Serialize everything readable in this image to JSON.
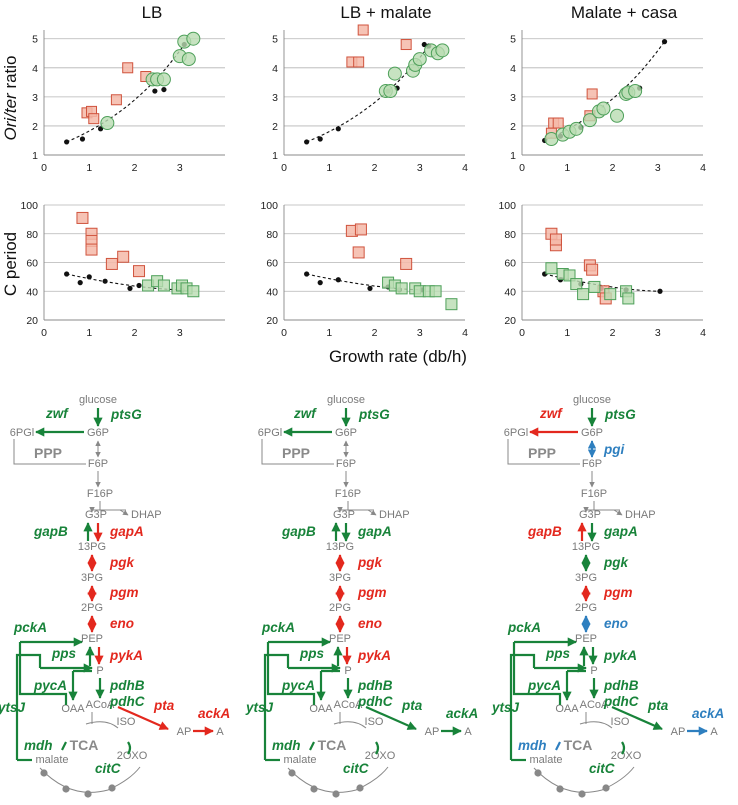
{
  "figure": {
    "panel_titles": [
      "LB",
      "LB + malate",
      "Malate + casa"
    ],
    "row_labels": {
      "ori_ter": {
        "prefix": "Ori/ter",
        "suffix": " ratio"
      },
      "c_period": "C period"
    },
    "x_axis_label": "Growth rate (db/h)",
    "x_ticks": [
      "0",
      "1",
      "2",
      "3",
      "4"
    ],
    "y_ticks_ori": [
      "1",
      "2",
      "3",
      "4",
      "5"
    ],
    "y_ticks_c": [
      "20",
      "40",
      "60",
      "80",
      "100"
    ]
  },
  "colors": {
    "red": "#e3281e",
    "green": "#18833a",
    "blue": "#2e7fbf",
    "gray": "#888888",
    "red_marker_fill": "#f4b9a8",
    "red_marker_stroke": "#d0533d",
    "green_marker_fill": "#b9dcb1",
    "green_marker_stroke": "#4ea05a"
  },
  "chart_data": [
    {
      "type": "scatter",
      "panel": "LB",
      "metric": "Ori/ter ratio",
      "xlim": [
        0,
        3.5
      ],
      "ylim": [
        1,
        5.3
      ],
      "fit": "exponential dashed trend",
      "series": [
        {
          "name": "reference (black)",
          "points": [
            [
              0.5,
              1.45
            ],
            [
              0.85,
              1.55
            ],
            [
              1.25,
              1.9
            ],
            [
              2.45,
              3.2
            ],
            [
              2.65,
              3.25
            ],
            [
              3.1,
              4.8
            ]
          ]
        },
        {
          "name": "red",
          "points": [
            [
              0.95,
              2.45
            ],
            [
              1.05,
              2.5
            ],
            [
              1.1,
              2.25
            ],
            [
              1.6,
              2.9
            ],
            [
              1.85,
              4.0
            ],
            [
              2.25,
              3.7
            ]
          ]
        },
        {
          "name": "green",
          "points": [
            [
              1.4,
              2.1
            ],
            [
              2.4,
              3.6
            ],
            [
              2.5,
              3.6
            ],
            [
              2.65,
              3.6
            ],
            [
              3.0,
              4.4
            ],
            [
              3.1,
              4.9
            ],
            [
              3.2,
              4.3
            ],
            [
              3.3,
              5.0
            ]
          ]
        }
      ]
    },
    {
      "type": "scatter",
      "panel": "LB + malate",
      "metric": "Ori/ter ratio",
      "xlim": [
        0,
        4
      ],
      "ylim": [
        1,
        5.3
      ],
      "series": [
        {
          "name": "reference (black)",
          "points": [
            [
              0.5,
              1.45
            ],
            [
              0.8,
              1.55
            ],
            [
              1.2,
              1.9
            ],
            [
              2.3,
              3.2
            ],
            [
              2.5,
              3.3
            ],
            [
              3.1,
              4.8
            ],
            [
              3.2,
              4.75
            ]
          ]
        },
        {
          "name": "red",
          "points": [
            [
              1.5,
              4.2
            ],
            [
              1.65,
              4.2
            ],
            [
              1.75,
              5.3
            ],
            [
              2.7,
              4.8
            ]
          ]
        },
        {
          "name": "green",
          "points": [
            [
              2.25,
              3.2
            ],
            [
              2.35,
              3.2
            ],
            [
              2.45,
              3.8
            ],
            [
              2.85,
              3.9
            ],
            [
              2.9,
              4.1
            ],
            [
              3.0,
              4.3
            ],
            [
              3.25,
              4.6
            ],
            [
              3.4,
              4.5
            ],
            [
              3.5,
              4.6
            ]
          ]
        }
      ]
    },
    {
      "type": "scatter",
      "panel": "Malate + casa",
      "metric": "Ori/ter ratio",
      "xlim": [
        0,
        4
      ],
      "ylim": [
        1,
        5.3
      ],
      "series": [
        {
          "name": "reference (black)",
          "points": [
            [
              0.5,
              1.5
            ],
            [
              0.85,
              1.65
            ],
            [
              1.3,
              1.95
            ],
            [
              2.4,
              3.2
            ],
            [
              2.6,
              3.3
            ],
            [
              3.15,
              4.9
            ]
          ]
        },
        {
          "name": "red",
          "points": [
            [
              0.65,
              1.75
            ],
            [
              0.7,
              2.1
            ],
            [
              0.8,
              2.1
            ],
            [
              1.5,
              2.35
            ],
            [
              1.55,
              3.1
            ]
          ]
        },
        {
          "name": "green",
          "points": [
            [
              0.65,
              1.55
            ],
            [
              0.9,
              1.7
            ],
            [
              1.05,
              1.8
            ],
            [
              1.2,
              1.9
            ],
            [
              1.5,
              2.2
            ],
            [
              1.7,
              2.5
            ],
            [
              1.8,
              2.6
            ],
            [
              2.1,
              2.35
            ],
            [
              2.3,
              3.1
            ],
            [
              2.35,
              3.15
            ],
            [
              2.5,
              3.2
            ]
          ]
        }
      ]
    },
    {
      "type": "scatter",
      "panel": "LB",
      "metric": "C period",
      "xlim": [
        0,
        3.5
      ],
      "ylim": [
        20,
        100
      ],
      "series": [
        {
          "name": "reference (black)",
          "points": [
            [
              0.5,
              52
            ],
            [
              0.8,
              46
            ],
            [
              1.0,
              50
            ],
            [
              1.35,
              47
            ],
            [
              1.9,
              42
            ],
            [
              2.1,
              44
            ],
            [
              3.05,
              41
            ]
          ]
        },
        {
          "name": "red",
          "points": [
            [
              0.85,
              91
            ],
            [
              1.05,
              80
            ],
            [
              1.05,
              75
            ],
            [
              1.05,
              69
            ],
            [
              1.5,
              59
            ],
            [
              1.75,
              64
            ],
            [
              2.1,
              54
            ]
          ]
        },
        {
          "name": "green",
          "points": [
            [
              2.3,
              44
            ],
            [
              2.5,
              47
            ],
            [
              2.65,
              44
            ],
            [
              2.95,
              42
            ],
            [
              3.05,
              44
            ],
            [
              3.15,
              42
            ],
            [
              3.3,
              40
            ]
          ]
        }
      ]
    },
    {
      "type": "scatter",
      "panel": "LB + malate",
      "metric": "C period",
      "xlim": [
        0,
        4
      ],
      "ylim": [
        20,
        100
      ],
      "series": [
        {
          "name": "reference (black)",
          "points": [
            [
              0.5,
              52
            ],
            [
              0.8,
              46
            ],
            [
              1.2,
              48
            ],
            [
              1.9,
              42
            ],
            [
              2.3,
              43
            ],
            [
              2.55,
              41
            ],
            [
              3.05,
              41
            ]
          ]
        },
        {
          "name": "red",
          "points": [
            [
              1.5,
              82
            ],
            [
              1.65,
              67
            ],
            [
              1.7,
              83
            ],
            [
              2.7,
              59
            ]
          ]
        },
        {
          "name": "green",
          "points": [
            [
              2.3,
              46
            ],
            [
              2.45,
              44
            ],
            [
              2.6,
              42
            ],
            [
              2.9,
              42
            ],
            [
              3.0,
              40
            ],
            [
              3.2,
              40
            ],
            [
              3.35,
              40
            ],
            [
              3.7,
              31
            ]
          ]
        }
      ]
    },
    {
      "type": "scatter",
      "panel": "Malate + casa",
      "metric": "C period",
      "xlim": [
        0,
        4
      ],
      "ylim": [
        20,
        100
      ],
      "series": [
        {
          "name": "reference (black)",
          "points": [
            [
              0.5,
              52
            ],
            [
              0.85,
              48
            ],
            [
              1.3,
              45
            ],
            [
              1.75,
              42
            ],
            [
              2.3,
              41
            ],
            [
              3.05,
              40
            ]
          ]
        },
        {
          "name": "red",
          "points": [
            [
              0.65,
              80
            ],
            [
              0.75,
              72
            ],
            [
              0.75,
              76
            ],
            [
              1.5,
              58
            ],
            [
              1.55,
              55
            ],
            [
              1.8,
              40
            ],
            [
              1.85,
              35
            ]
          ]
        },
        {
          "name": "green",
          "points": [
            [
              0.65,
              56
            ],
            [
              0.9,
              52
            ],
            [
              1.05,
              51
            ],
            [
              1.2,
              45
            ],
            [
              1.35,
              38
            ],
            [
              1.6,
              43
            ],
            [
              1.95,
              38
            ],
            [
              2.3,
              40
            ],
            [
              2.35,
              35
            ]
          ]
        }
      ]
    }
  ],
  "pathway": {
    "nodes": {
      "glucose": "glucose",
      "g6p": "G6P",
      "pgl": "6PGl",
      "ppp": "PPP",
      "f6p": "F6P",
      "f16p": "F16P",
      "g3p": "G3P",
      "dhap": "DHAP",
      "pg13": "13PG",
      "pg3": "3PG",
      "pg2": "2PG",
      "pep": "PEP",
      "pyr": "P",
      "acoa": "ACoA",
      "ap": "AP",
      "a": "A",
      "oaa": "OAA",
      "tca": "TCA",
      "iso": "ISO",
      "oxo": "2OXO",
      "malate": "malate"
    },
    "panels": [
      {
        "name": "LB",
        "genes": [
          {
            "label": "zwf",
            "color": "green"
          },
          {
            "label": "ptsG",
            "color": "green"
          },
          {
            "label": "gapB",
            "color": "green"
          },
          {
            "label": "gapA",
            "color": "red"
          },
          {
            "label": "pgk",
            "color": "red"
          },
          {
            "label": "pgm",
            "color": "red"
          },
          {
            "label": "eno",
            "color": "red"
          },
          {
            "label": "pckA",
            "color": "green"
          },
          {
            "label": "pps",
            "color": "green"
          },
          {
            "label": "pykA",
            "color": "red"
          },
          {
            "label": "pycA",
            "color": "green"
          },
          {
            "label": "pdhB",
            "color": "green"
          },
          {
            "label": "pdhC",
            "color": "green"
          },
          {
            "label": "pta",
            "color": "red"
          },
          {
            "label": "ackA",
            "color": "red"
          },
          {
            "label": "ytsJ",
            "color": "green"
          },
          {
            "label": "mdh",
            "color": "green"
          },
          {
            "label": "citC",
            "color": "green"
          }
        ]
      },
      {
        "name": "LB + malate",
        "genes": [
          {
            "label": "zwf",
            "color": "green"
          },
          {
            "label": "ptsG",
            "color": "green"
          },
          {
            "label": "gapB",
            "color": "green"
          },
          {
            "label": "gapA",
            "color": "green"
          },
          {
            "label": "pgk",
            "color": "red"
          },
          {
            "label": "pgm",
            "color": "red"
          },
          {
            "label": "eno",
            "color": "red"
          },
          {
            "label": "pckA",
            "color": "green"
          },
          {
            "label": "pps",
            "color": "green"
          },
          {
            "label": "pykA",
            "color": "red"
          },
          {
            "label": "pycA",
            "color": "green"
          },
          {
            "label": "pdhB",
            "color": "green"
          },
          {
            "label": "pdhC",
            "color": "green"
          },
          {
            "label": "pta",
            "color": "green"
          },
          {
            "label": "ackA",
            "color": "green"
          },
          {
            "label": "ytsJ",
            "color": "green"
          },
          {
            "label": "mdh",
            "color": "green"
          },
          {
            "label": "citC",
            "color": "green"
          }
        ]
      },
      {
        "name": "Malate + casa",
        "genes": [
          {
            "label": "zwf",
            "color": "red"
          },
          {
            "label": "ptsG",
            "color": "green"
          },
          {
            "label": "gapB",
            "color": "red"
          },
          {
            "label": "gapA",
            "color": "green"
          },
          {
            "label": "pgk",
            "color": "green"
          },
          {
            "label": "pgm",
            "color": "red"
          },
          {
            "label": "eno",
            "color": "blue"
          },
          {
            "label": "pckA",
            "color": "green"
          },
          {
            "label": "pps",
            "color": "green"
          },
          {
            "label": "pykA",
            "color": "green"
          },
          {
            "label": "pycA",
            "color": "green"
          },
          {
            "label": "pdhB",
            "color": "green"
          },
          {
            "label": "pdhC",
            "color": "green"
          },
          {
            "label": "pta",
            "color": "green"
          },
          {
            "label": "ackA",
            "color": "blue"
          },
          {
            "label": "ytsJ",
            "color": "green"
          },
          {
            "label": "mdh",
            "color": "blue"
          },
          {
            "label": "citC",
            "color": "green"
          },
          {
            "label": "pgi",
            "color": "blue"
          }
        ]
      }
    ]
  }
}
